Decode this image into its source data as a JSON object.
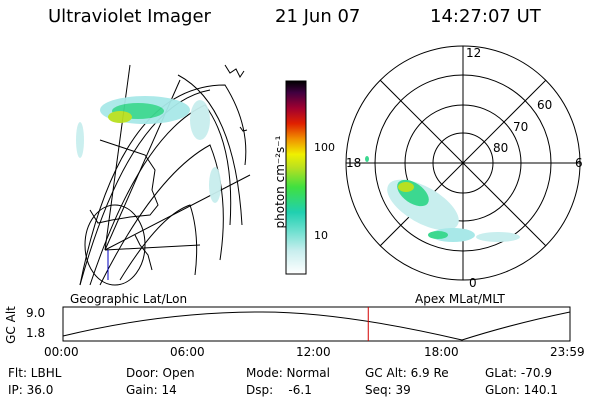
{
  "header": {
    "instrument": "Ultraviolet Imager",
    "date": "21 Jun 07",
    "time": "14:27:07 UT"
  },
  "colorbar": {
    "unit_label": "photon cm⁻²s⁻¹",
    "ticks": [
      "100",
      "10"
    ]
  },
  "panels": {
    "left_caption": "Geographic Lat/Lon",
    "right_caption": "Apex MLat/MLT",
    "polar_labels": {
      "mlt_top": "12",
      "mlt_left": "18",
      "mlt_right": "6",
      "mlt_bottom": "0",
      "lat_60": "60",
      "lat_70": "70",
      "lat_80": "80"
    }
  },
  "altitude_plot": {
    "ylabel": "GC Alt",
    "y_ticks": [
      "9.0",
      "1.8"
    ],
    "x_ticks": [
      "00:00",
      "06:00",
      "12:00",
      "18:00",
      "23:59"
    ],
    "current_time_marker_hours": 14.45
  },
  "status": {
    "flt": "Flt: LBHL",
    "door": "Door: Open",
    "mode": "Mode: Normal",
    "gc_alt": "GC Alt: 6.9 Re",
    "glat": "GLat: -70.9",
    "ip": "IP: 36.0",
    "gain": "Gain: 14",
    "dsp": "Dsp:    -6.1",
    "seq": "Seq: 39",
    "glon": "GLon: 140.1"
  },
  "colors": {
    "marker": "#d40000",
    "auroral_low": "#a8e8e8",
    "auroral_mid": "#3cd890",
    "auroral_high": "#b8e020"
  }
}
